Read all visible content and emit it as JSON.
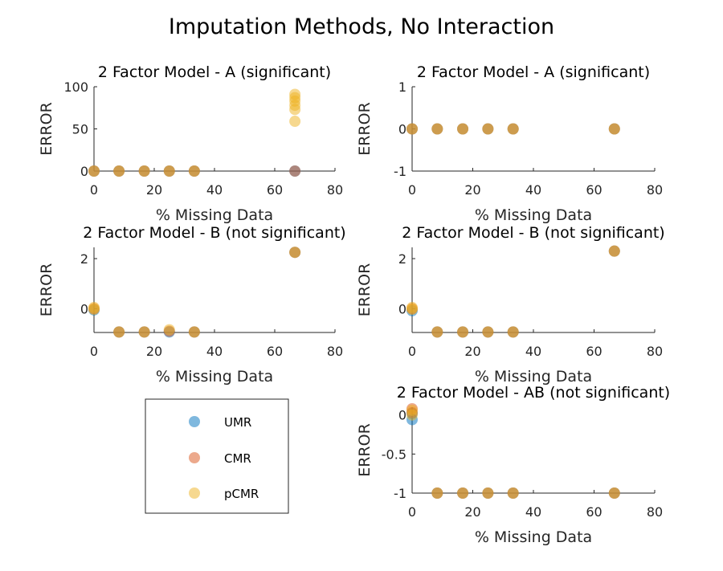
{
  "figure": {
    "suptitle": "Imputation Methods, No Interaction",
    "colors": {
      "UMR": "#0072BD",
      "CMR": "#D95319",
      "pCMR": "#EDB120"
    },
    "legend": {
      "entries": [
        "UMR",
        "CMR",
        "pCMR"
      ]
    }
  },
  "chart_data": [
    {
      "type": "scatter",
      "title": "2 Factor Model - A (significant)",
      "xlabel": "% Missing Data",
      "ylabel": "ERROR",
      "xlim": [
        0,
        80
      ],
      "ylim": [
        0,
        100
      ],
      "xticks": [
        0,
        20,
        40,
        60,
        80
      ],
      "yticks": [
        0,
        50,
        100
      ],
      "ytick_labels": [
        "0",
        "50",
        "100"
      ],
      "series": [
        {
          "name": "UMR",
          "points": [
            [
              0,
              0
            ],
            [
              8.3,
              0
            ],
            [
              16.7,
              0
            ],
            [
              25,
              0
            ],
            [
              33.3,
              0
            ],
            [
              66.7,
              0
            ]
          ]
        },
        {
          "name": "CMR",
          "points": [
            [
              0,
              0
            ],
            [
              8.3,
              0
            ],
            [
              16.7,
              0
            ],
            [
              25,
              0
            ],
            [
              33.3,
              0
            ],
            [
              66.7,
              0
            ]
          ]
        },
        {
          "name": "pCMR",
          "points": [
            [
              0,
              0
            ],
            [
              8.3,
              0
            ],
            [
              16.7,
              0
            ],
            [
              25,
              0
            ],
            [
              33.3,
              0
            ],
            [
              66.7,
              59
            ],
            [
              66.7,
              73
            ],
            [
              66.7,
              78
            ],
            [
              66.7,
              83
            ],
            [
              66.7,
              87
            ],
            [
              66.7,
              91
            ]
          ]
        }
      ]
    },
    {
      "type": "scatter",
      "title": "2 Factor Model - A (significant)",
      "xlabel": "% Missing Data",
      "ylabel": "ERROR",
      "xlim": [
        0,
        80
      ],
      "ylim": [
        -1,
        1
      ],
      "xticks": [
        0,
        20,
        40,
        60,
        80
      ],
      "yticks": [
        -1,
        0,
        1
      ],
      "ytick_labels": [
        "-1",
        "0",
        "1"
      ],
      "series": [
        {
          "name": "UMR",
          "points": [
            [
              0,
              0
            ],
            [
              8.3,
              0
            ],
            [
              16.7,
              0
            ],
            [
              25,
              0
            ],
            [
              33.3,
              0
            ],
            [
              66.7,
              0
            ]
          ]
        },
        {
          "name": "CMR",
          "points": [
            [
              0,
              0
            ],
            [
              8.3,
              0
            ],
            [
              16.7,
              0
            ],
            [
              25,
              0
            ],
            [
              33.3,
              0
            ],
            [
              66.7,
              0
            ]
          ]
        },
        {
          "name": "pCMR",
          "points": [
            [
              0,
              0
            ],
            [
              8.3,
              0
            ],
            [
              16.7,
              0
            ],
            [
              25,
              0
            ],
            [
              33.3,
              0
            ],
            [
              66.7,
              0
            ]
          ]
        }
      ]
    },
    {
      "type": "scatter",
      "title": "2 Factor Model - B (not significant)",
      "xlabel": "% Missing Data",
      "ylabel": "ERROR",
      "xlim": [
        0,
        80
      ],
      "ylim": [
        -0.95,
        2.45
      ],
      "xticks": [
        0,
        20,
        40,
        60,
        80
      ],
      "yticks": [
        0,
        2
      ],
      "ytick_labels": [
        "0",
        "2"
      ],
      "series": [
        {
          "name": "UMR",
          "points": [
            [
              0,
              -0.05
            ],
            [
              8.3,
              -0.93
            ],
            [
              16.7,
              -0.93
            ],
            [
              25,
              -0.93
            ],
            [
              33.3,
              -0.93
            ],
            [
              66.7,
              2.25
            ]
          ]
        },
        {
          "name": "CMR",
          "points": [
            [
              0,
              0
            ],
            [
              8.3,
              -0.93
            ],
            [
              16.7,
              -0.93
            ],
            [
              25,
              -0.9
            ],
            [
              33.3,
              -0.93
            ],
            [
              66.7,
              2.25
            ]
          ]
        },
        {
          "name": "pCMR",
          "points": [
            [
              0,
              0.05
            ],
            [
              0,
              -0.02
            ],
            [
              8.3,
              -0.93
            ],
            [
              16.7,
              -0.93
            ],
            [
              25,
              -0.84
            ],
            [
              33.3,
              -0.93
            ],
            [
              66.7,
              2.25
            ]
          ]
        }
      ]
    },
    {
      "type": "scatter",
      "title": "2 Factor Model - B (not significant)",
      "xlabel": "% Missing Data",
      "ylabel": "ERROR",
      "xlim": [
        0,
        80
      ],
      "ylim": [
        -0.95,
        2.45
      ],
      "xticks": [
        0,
        20,
        40,
        60,
        80
      ],
      "yticks": [
        0,
        2
      ],
      "ytick_labels": [
        "0",
        "2"
      ],
      "series": [
        {
          "name": "UMR",
          "points": [
            [
              0,
              -0.08
            ],
            [
              8.3,
              -0.93
            ],
            [
              16.7,
              -0.93
            ],
            [
              25,
              -0.93
            ],
            [
              33.3,
              -0.93
            ],
            [
              66.7,
              2.3
            ]
          ]
        },
        {
          "name": "CMR",
          "points": [
            [
              0,
              0
            ],
            [
              8.3,
              -0.93
            ],
            [
              16.7,
              -0.93
            ],
            [
              25,
              -0.93
            ],
            [
              33.3,
              -0.93
            ],
            [
              66.7,
              2.3
            ]
          ]
        },
        {
          "name": "pCMR",
          "points": [
            [
              0,
              0.05
            ],
            [
              0,
              -0.02
            ],
            [
              8.3,
              -0.93
            ],
            [
              16.7,
              -0.93
            ],
            [
              25,
              -0.93
            ],
            [
              33.3,
              -0.93
            ],
            [
              66.7,
              2.3
            ]
          ]
        }
      ]
    },
    {
      "type": "scatter",
      "title": "2 Factor Model - AB (not significant)",
      "xlabel": "% Missing Data",
      "ylabel": "ERROR",
      "xlim": [
        0,
        80
      ],
      "ylim": [
        -1,
        0.1
      ],
      "xticks": [
        0,
        20,
        40,
        60,
        80
      ],
      "yticks": [
        -1,
        -0.5,
        0
      ],
      "ytick_labels": [
        "-1",
        "-0.5",
        "0"
      ],
      "series": [
        {
          "name": "UMR",
          "points": [
            [
              0,
              -0.06
            ],
            [
              0,
              0.02
            ],
            [
              8.3,
              -1
            ],
            [
              16.7,
              -1
            ],
            [
              25,
              -1
            ],
            [
              33.3,
              -1
            ],
            [
              66.7,
              -1
            ]
          ]
        },
        {
          "name": "CMR",
          "points": [
            [
              0,
              0.08
            ],
            [
              0,
              0.03
            ],
            [
              8.3,
              -1
            ],
            [
              16.7,
              -1
            ],
            [
              25,
              -1
            ],
            [
              33.3,
              -1
            ],
            [
              66.7,
              -1
            ]
          ]
        },
        {
          "name": "pCMR",
          "points": [
            [
              0,
              0.06
            ],
            [
              0,
              0
            ],
            [
              8.3,
              -1
            ],
            [
              16.7,
              -1
            ],
            [
              25,
              -1
            ],
            [
              33.3,
              -1
            ],
            [
              66.7,
              -1
            ]
          ]
        }
      ]
    }
  ]
}
